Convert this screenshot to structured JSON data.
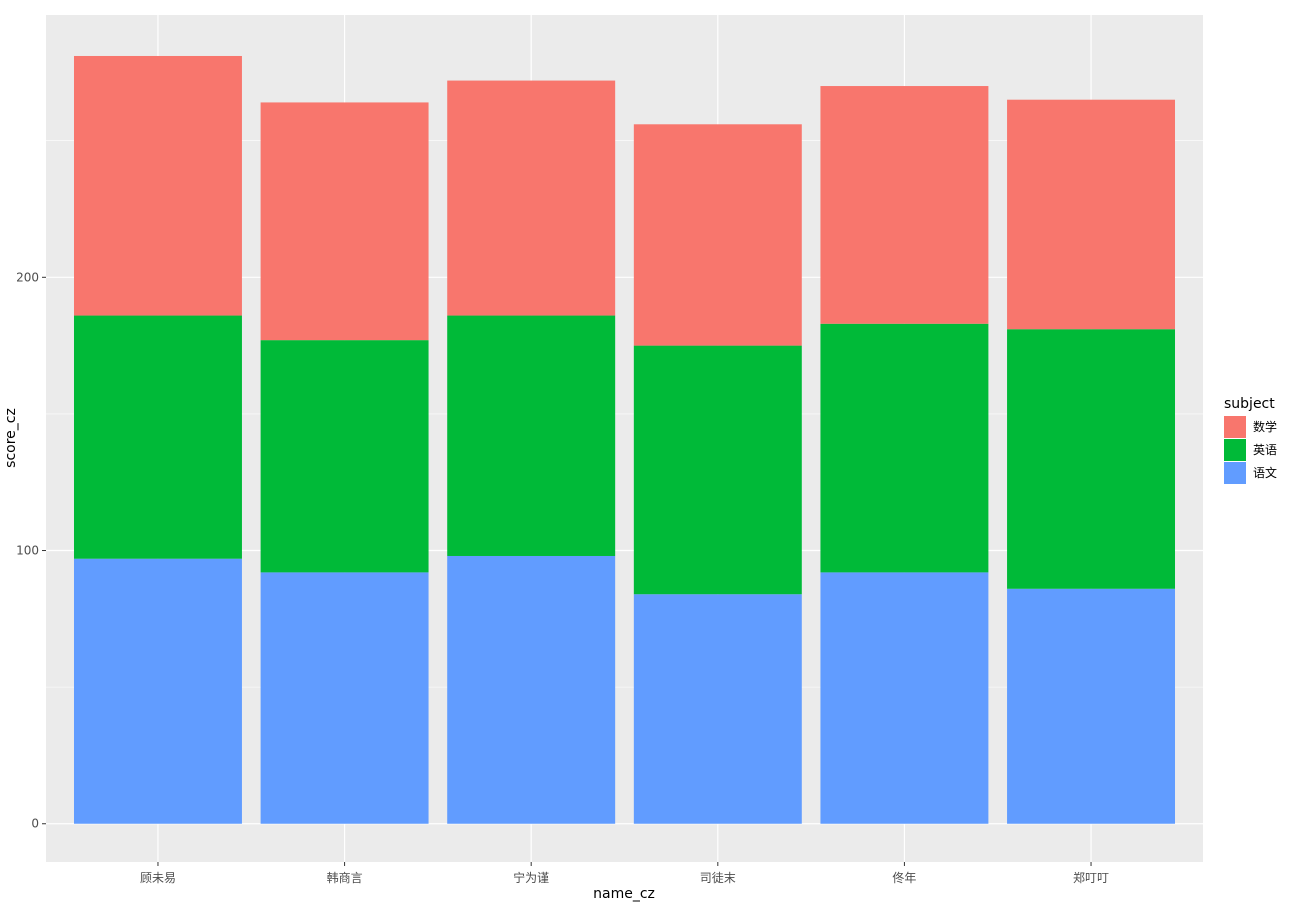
{
  "chart_data": {
    "type": "bar",
    "stacked": true,
    "categories": [
      "顾未易",
      "韩商言",
      "宁为谨",
      "司徒末",
      "佟年",
      "郑叮叮"
    ],
    "series": [
      {
        "name": "语文",
        "color": "#619CFF",
        "values": [
          97,
          92,
          98,
          84,
          92,
          86
        ]
      },
      {
        "name": "英语",
        "color": "#00BA38",
        "values": [
          89,
          85,
          88,
          91,
          91,
          95
        ]
      },
      {
        "name": "数学",
        "color": "#F8766D",
        "values": [
          95,
          87,
          86,
          81,
          87,
          84
        ]
      }
    ],
    "title": "",
    "xlabel": "name_cz",
    "ylabel": "score_cz",
    "ylim": [
      -14,
      296
    ],
    "yticks": [
      0,
      100,
      200
    ],
    "ytick_labels": [
      "0",
      "100",
      "200"
    ],
    "grid": true,
    "legend": {
      "title": "subject",
      "placement": "right",
      "order": [
        "数学",
        "英语",
        "语文"
      ]
    },
    "panel_background": "#EBEBEB",
    "grid_color": "#FFFFFF"
  }
}
